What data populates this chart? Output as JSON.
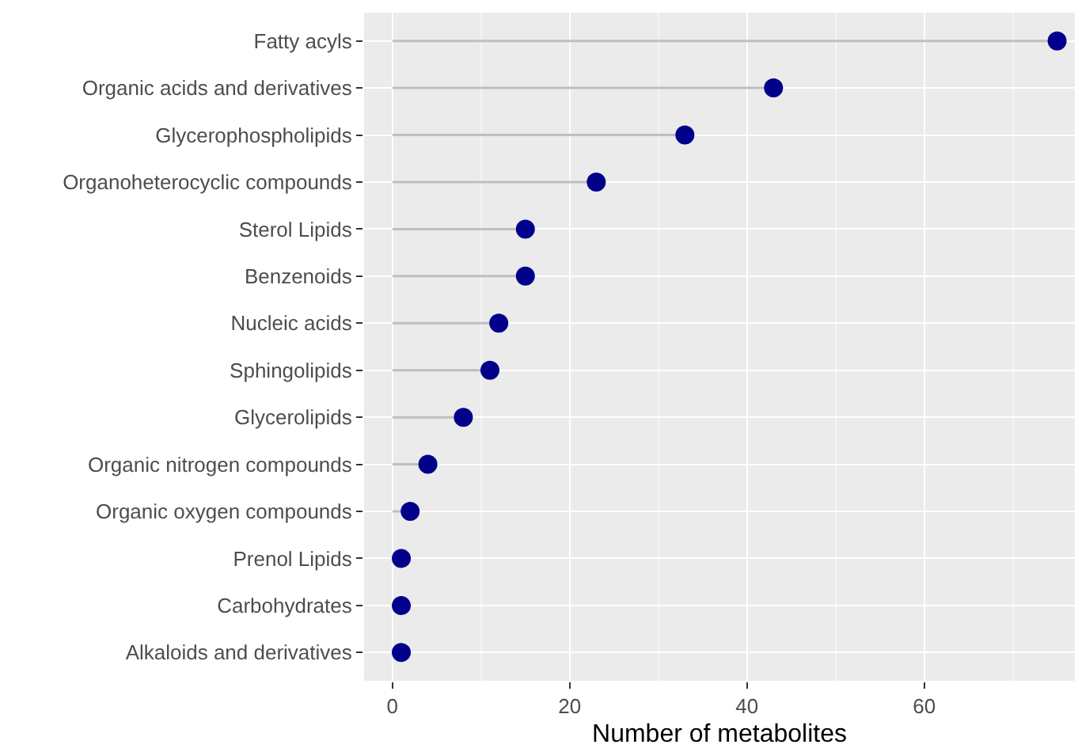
{
  "chart_data": {
    "type": "lollipop",
    "orientation": "horizontal",
    "xlabel": "Number of metabolites",
    "categories": [
      "Fatty acyls",
      "Organic acids and derivatives",
      "Glycerophospholipids",
      "Organoheterocyclic compounds",
      "Sterol Lipids",
      "Benzenoids",
      "Nucleic acids",
      "Sphingolipids",
      "Glycerolipids",
      "Organic nitrogen compounds",
      "Organic oxygen compounds",
      "Prenol Lipids",
      "Carbohydrates",
      "Alkaloids and derivatives"
    ],
    "values": [
      75,
      43,
      33,
      23,
      15,
      15,
      12,
      11,
      8,
      4,
      2,
      1,
      1,
      1
    ],
    "color": "#00008b",
    "xlim": [
      -3.2,
      77
    ],
    "xticks": [
      0,
      20,
      40,
      60
    ],
    "grid": true,
    "marker": "circle"
  }
}
